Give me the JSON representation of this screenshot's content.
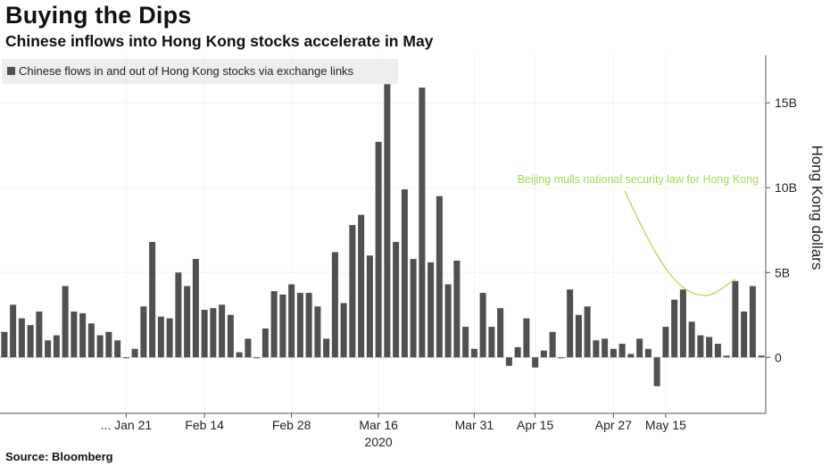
{
  "chart_data": {
    "type": "bar",
    "title": "Buying the Dips",
    "subtitle": "Chinese inflows into Hong Kong stocks accelerate in May",
    "legend": [
      "Chinese flows in and out of Hong Kong stocks via exchange links"
    ],
    "ylabel": "Hong Kong dollars",
    "ylim": [
      -3.3,
      17.8
    ],
    "y_ticks": [
      {
        "value": 15,
        "label": "15B"
      },
      {
        "value": 10,
        "label": "10B"
      },
      {
        "value": 5,
        "label": "5B"
      },
      {
        "value": 0,
        "label": "0"
      }
    ],
    "x_ticks": [
      {
        "index": 14,
        "label": "... Jan 21"
      },
      {
        "index": 23,
        "label": "Feb 14"
      },
      {
        "index": 33,
        "label": "Feb 28"
      },
      {
        "index": 43,
        "label": "Mar 16"
      },
      {
        "index": 54,
        "label": "Mar 31"
      },
      {
        "index": 61,
        "label": "Apr 15"
      },
      {
        "index": 70,
        "label": "Apr 27"
      },
      {
        "index": 76,
        "label": "May 15"
      }
    ],
    "x_year": {
      "index": 43,
      "label": "2020"
    },
    "values": [
      1.5,
      3.1,
      2.3,
      1.9,
      2.7,
      1.0,
      1.3,
      4.2,
      2.7,
      2.6,
      2.0,
      1.3,
      1.5,
      1.0,
      0.0,
      0.5,
      3.0,
      6.8,
      2.4,
      2.3,
      5.0,
      4.2,
      5.8,
      2.8,
      2.9,
      3.1,
      2.5,
      0.3,
      1.1,
      0.0,
      1.7,
      3.9,
      3.7,
      4.3,
      3.8,
      3.8,
      3.0,
      1.1,
      6.2,
      3.2,
      7.8,
      8.4,
      6.0,
      12.7,
      16.1,
      6.8,
      9.9,
      5.8,
      15.9,
      5.6,
      9.5,
      4.3,
      5.7,
      1.8,
      0.5,
      3.8,
      1.8,
      2.9,
      -0.5,
      0.6,
      2.3,
      -0.6,
      0.4,
      1.5,
      0.0,
      4.0,
      2.5,
      3.0,
      1.0,
      1.1,
      0.5,
      0.8,
      0.2,
      1.1,
      0.5,
      -1.7,
      1.8,
      3.4,
      4.0,
      2.1,
      1.3,
      1.2,
      0.8,
      0.1,
      4.5,
      2.7,
      4.2,
      0.1
    ],
    "annotation": {
      "text": "Beijing mulls national security law for Hong Kong",
      "index": 84
    },
    "colors": {
      "bar": "#505050",
      "annotation": "#a6d94a",
      "grid": "#dddddd",
      "axis": "#555555"
    }
  },
  "footer": {
    "source": "Source: Bloomberg"
  }
}
